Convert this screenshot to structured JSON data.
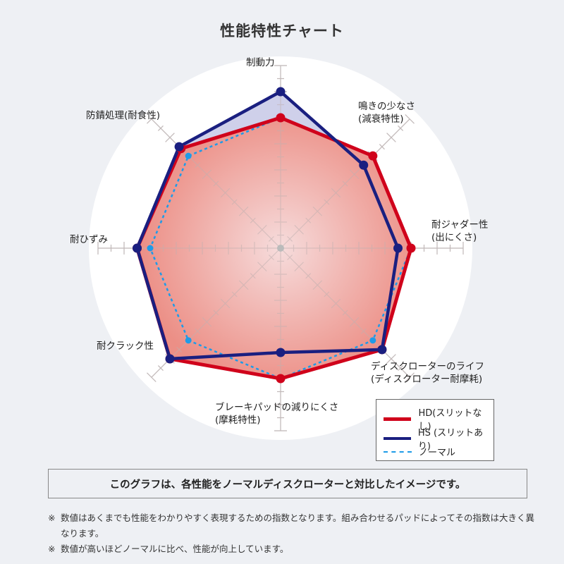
{
  "title": "性能特性チャート",
  "axes": [
    {
      "line1": "制動力",
      "line2": ""
    },
    {
      "line1": "鳴きの少なさ",
      "line2": "(減衰特性)"
    },
    {
      "line1": "耐ジャダー性",
      "line2": "(出にくさ)"
    },
    {
      "line1": "ディスクローターのライフ",
      "line2": "(ディスクローター耐摩耗)"
    },
    {
      "line1": "ブレーキパッドの減りにくさ",
      "line2": "(摩耗特性)"
    },
    {
      "line1": "耐クラック性",
      "line2": ""
    },
    {
      "line1": "耐ひずみ",
      "line2": ""
    },
    {
      "line1": "防錆処理(耐食性)",
      "line2": ""
    }
  ],
  "legend": [
    {
      "label": "HD(スリットなし)",
      "color": "#d0021b",
      "style": "solid"
    },
    {
      "label": "HS (スリットあり)",
      "color": "#1a1f80",
      "style": "solid"
    },
    {
      "label": "ノーマル",
      "color": "#1e9be8",
      "style": "dashed"
    }
  ],
  "note": "このグラフは、各性能をノーマルディスクローターと対比したイメージです。",
  "footnotes": [
    {
      "mark": "※",
      "text": "数値はあくまでも性能をわかりやすく表現するための指数となります。組み合わせるパッドによってその指数は大きく異なります。"
    },
    {
      "mark": "※",
      "text": "数値が高いほどノーマルに比べ、性能が向上しています。"
    }
  ],
  "chart_data": {
    "type": "radar",
    "title": "性能特性チャート",
    "categories": [
      "制動力",
      "鳴きの少なさ(減衰特性)",
      "耐ジャダー性(出にくさ)",
      "ディスクローターのライフ(ディスクローター耐摩耗)",
      "ブレーキパッドの減りにくさ(摩耗特性)",
      "耐クラック性",
      "耐ひずみ",
      "防錆処理(耐食性)"
    ],
    "series": [
      {
        "name": "HD(スリットなし)",
        "color": "#d0021b",
        "values": [
          5,
          5,
          5,
          5.5,
          5,
          6,
          5.5,
          5.4
        ]
      },
      {
        "name": "HS (スリットあり)",
        "color": "#1a1f80",
        "values": [
          6,
          4.5,
          4.5,
          5.5,
          4,
          6,
          5.5,
          5.5
        ]
      },
      {
        "name": "ノーマル",
        "color": "#1e9be8",
        "values": [
          5,
          5,
          5,
          5,
          5,
          5,
          5,
          5
        ]
      }
    ],
    "rlim": [
      0,
      7
    ],
    "grid": true,
    "legend_position": "bottom-right"
  }
}
